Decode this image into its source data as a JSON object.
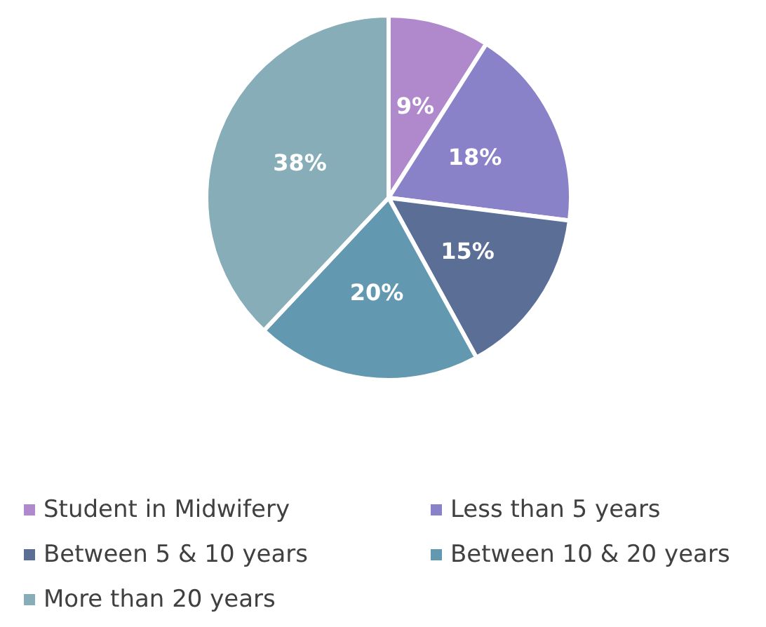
{
  "chart_data": {
    "type": "pie",
    "categories": [
      "Student in Midwifery",
      "Less than 5 years",
      "Between 5 & 10 years",
      "Between 10 & 20 years",
      "More than 20 years"
    ],
    "values": [
      9,
      18,
      15,
      20,
      38
    ],
    "value_labels": [
      "9%",
      "18%",
      "15%",
      "20%",
      "38%"
    ],
    "colors": [
      "#b088cc",
      "#8a82c9",
      "#5b6e96",
      "#6399b0",
      "#86adb8"
    ],
    "legend": "bottom"
  }
}
